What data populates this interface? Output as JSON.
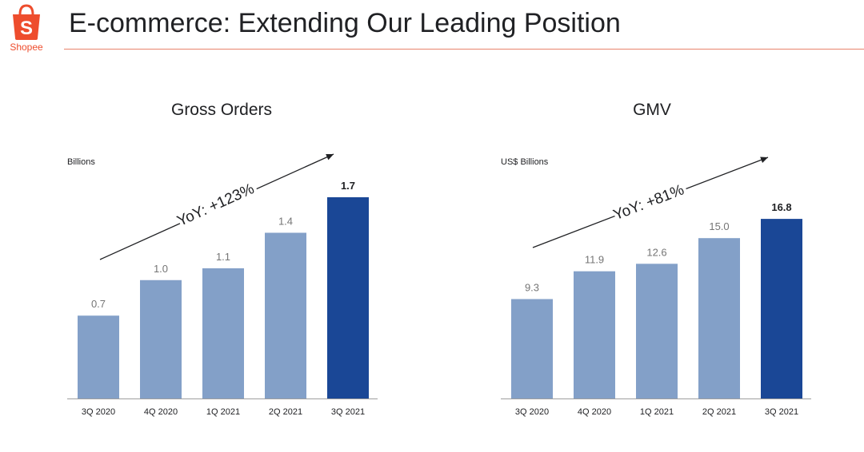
{
  "header": {
    "title": "E-commerce: Extending Our Leading Position",
    "logo_text": "Shopee",
    "colors": {
      "brand": "#ee4d2d",
      "rule": "#e8836b"
    }
  },
  "chart_data": [
    {
      "type": "bar",
      "title": "Gross Orders",
      "unit_label": "Billions",
      "categories": [
        "3Q 2020",
        "4Q 2020",
        "1Q 2021",
        "2Q 2021",
        "3Q 2021"
      ],
      "values": [
        0.7,
        1.0,
        1.1,
        1.4,
        1.7
      ],
      "value_labels": [
        "0.7",
        "1.0",
        "1.1",
        "1.4",
        "1.7"
      ],
      "ylim": [
        0,
        1.7
      ],
      "highlight_index": 4,
      "annotation": "YoY: +123%",
      "colors": {
        "bar": "#83a0c8",
        "highlight": "#1a4796"
      }
    },
    {
      "type": "bar",
      "title": "GMV",
      "unit_label": "US$ Billions",
      "categories": [
        "3Q 2020",
        "4Q 2020",
        "1Q 2021",
        "2Q 2021",
        "3Q 2021"
      ],
      "values": [
        9.3,
        11.9,
        12.6,
        15.0,
        16.8
      ],
      "value_labels": [
        "9.3",
        "11.9",
        "12.6",
        "15.0",
        "16.8"
      ],
      "ylim": [
        0,
        18.6
      ],
      "highlight_index": 4,
      "annotation": "YoY: +81%",
      "colors": {
        "bar": "#83a0c8",
        "highlight": "#1a4796"
      }
    }
  ]
}
